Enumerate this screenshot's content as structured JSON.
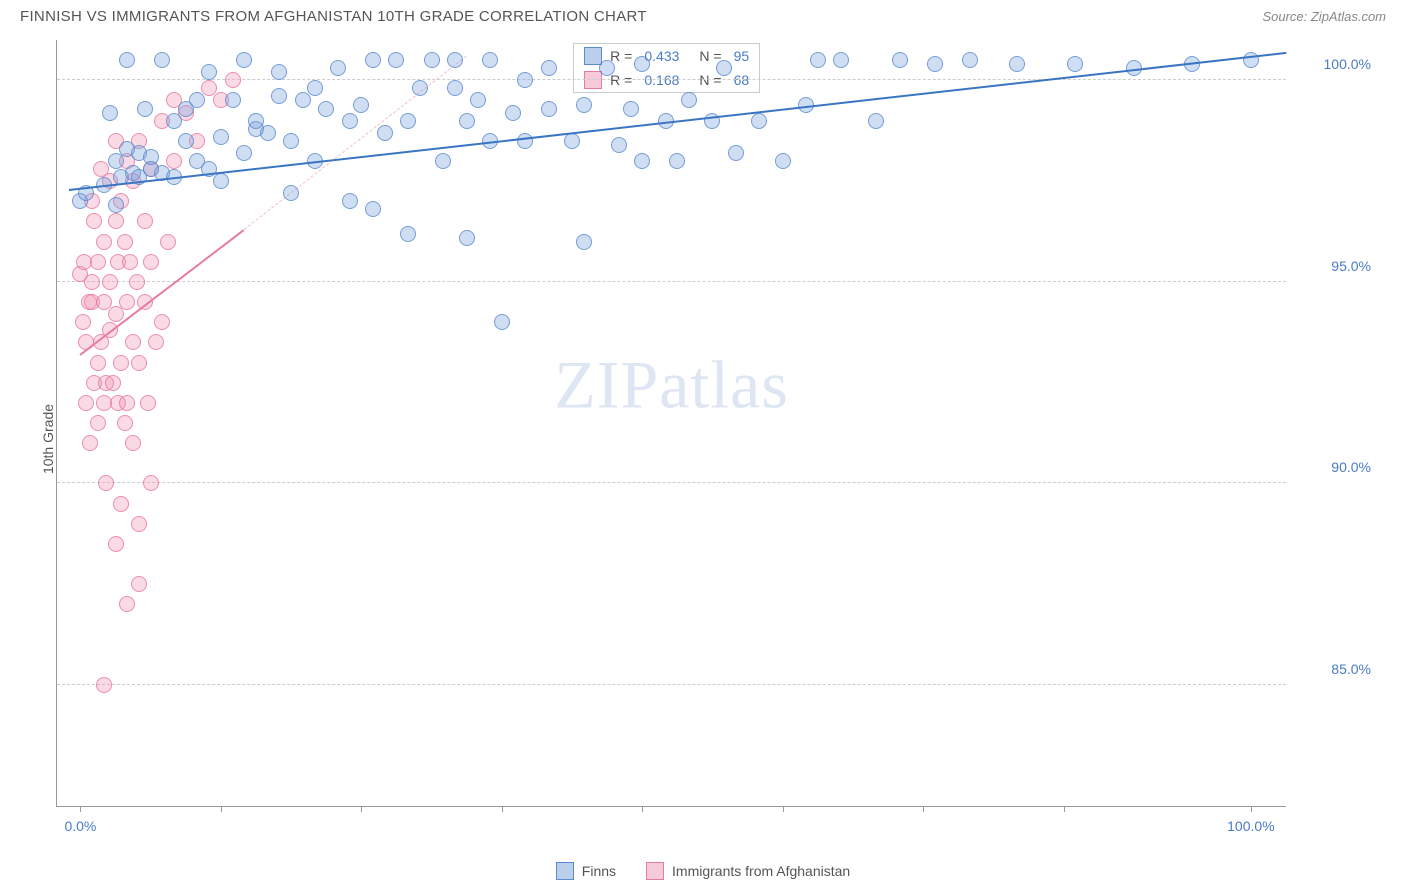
{
  "header": {
    "title": "FINNISH VS IMMIGRANTS FROM AFGHANISTAN 10TH GRADE CORRELATION CHART",
    "source": "Source: ZipAtlas.com"
  },
  "ylabel": "10th Grade",
  "watermark": {
    "part1": "ZIP",
    "part2": "atlas"
  },
  "axes": {
    "ymin": 82.0,
    "ymax": 101.0,
    "yticks": [
      85.0,
      90.0,
      95.0,
      100.0
    ],
    "ytick_labels": [
      "85.0%",
      "90.0%",
      "95.0%",
      "100.0%"
    ],
    "xmin": -2.0,
    "xmax": 103.0,
    "xticks": [
      0,
      12,
      24,
      36,
      48,
      60,
      72,
      84,
      100
    ],
    "xaxis_labels": [
      {
        "pos": 0,
        "text": "0.0%"
      },
      {
        "pos": 100,
        "text": "100.0%"
      }
    ]
  },
  "colors": {
    "blue_fill": "rgba(120,160,220,0.35)",
    "blue_stroke": "rgba(80,130,200,0.7)",
    "pink_fill": "rgba(240,150,180,0.35)",
    "pink_stroke": "rgba(230,110,150,0.7)",
    "grid": "#cccccc",
    "axis": "#999999",
    "tick_text": "#4a7bc8",
    "trend_blue": "#3a75c4",
    "trend_pink": "#e87ba3"
  },
  "legend_stats": {
    "rows": [
      {
        "swatch": "blue",
        "r": "0.433",
        "n": "95"
      },
      {
        "swatch": "pink",
        "r": "0.168",
        "n": "68"
      }
    ],
    "r_label": "R =",
    "n_label": "N ="
  },
  "bottom_legend": [
    {
      "swatch": "blue",
      "label": "Finns"
    },
    {
      "swatch": "pink",
      "label": "Immigrants from Afghanistan"
    }
  ],
  "trend_lines": {
    "blue": {
      "x1": -1,
      "y1": 97.3,
      "x2": 103,
      "y2": 100.7
    },
    "pink_solid": {
      "x1": 0,
      "y1": 93.2,
      "x2": 14,
      "y2": 96.3
    },
    "pink_dash": {
      "x1": 14,
      "y1": 96.3,
      "x2": 33,
      "y2": 100.6
    }
  },
  "series": {
    "blue": [
      [
        0,
        97.0
      ],
      [
        0.5,
        97.2
      ],
      [
        2,
        97.4
      ],
      [
        2.5,
        99.2
      ],
      [
        3,
        96.9
      ],
      [
        3,
        98.0
      ],
      [
        3.5,
        97.6
      ],
      [
        4,
        100.5
      ],
      [
        4,
        98.3
      ],
      [
        4.5,
        97.7
      ],
      [
        5,
        97.6
      ],
      [
        5,
        98.2
      ],
      [
        5.5,
        99.3
      ],
      [
        6,
        97.8
      ],
      [
        6,
        98.1
      ],
      [
        7,
        97.7
      ],
      [
        7,
        100.5
      ],
      [
        8,
        99.0
      ],
      [
        8,
        97.6
      ],
      [
        9,
        98.5
      ],
      [
        9,
        99.3
      ],
      [
        10,
        98.0
      ],
      [
        10,
        99.5
      ],
      [
        11,
        97.8
      ],
      [
        11,
        100.2
      ],
      [
        12,
        98.6
      ],
      [
        12,
        97.5
      ],
      [
        13,
        99.5
      ],
      [
        14,
        98.2
      ],
      [
        14,
        100.5
      ],
      [
        15,
        98.8
      ],
      [
        15,
        99.0
      ],
      [
        16,
        98.7
      ],
      [
        17,
        99.6
      ],
      [
        17,
        100.2
      ],
      [
        18,
        97.2
      ],
      [
        18,
        98.5
      ],
      [
        19,
        99.5
      ],
      [
        20,
        99.8
      ],
      [
        20,
        98.0
      ],
      [
        21,
        99.3
      ],
      [
        22,
        100.3
      ],
      [
        23,
        97.0
      ],
      [
        23,
        99.0
      ],
      [
        24,
        99.4
      ],
      [
        25,
        96.8
      ],
      [
        25,
        100.5
      ],
      [
        26,
        98.7
      ],
      [
        27,
        100.5
      ],
      [
        28,
        99.0
      ],
      [
        28,
        96.2
      ],
      [
        29,
        99.8
      ],
      [
        30,
        100.5
      ],
      [
        31,
        98.0
      ],
      [
        32,
        99.8
      ],
      [
        32,
        100.5
      ],
      [
        33,
        99.0
      ],
      [
        33,
        96.1
      ],
      [
        34,
        99.5
      ],
      [
        35,
        98.5
      ],
      [
        35,
        100.5
      ],
      [
        36,
        94.0
      ],
      [
        37,
        99.2
      ],
      [
        38,
        100.0
      ],
      [
        38,
        98.5
      ],
      [
        40,
        99.3
      ],
      [
        40,
        100.3
      ],
      [
        42,
        98.5
      ],
      [
        43,
        99.4
      ],
      [
        43,
        96.0
      ],
      [
        45,
        100.3
      ],
      [
        46,
        98.4
      ],
      [
        47,
        99.3
      ],
      [
        48,
        100.4
      ],
      [
        48,
        98.0
      ],
      [
        50,
        99.0
      ],
      [
        51,
        98.0
      ],
      [
        52,
        99.5
      ],
      [
        54,
        99.0
      ],
      [
        55,
        100.3
      ],
      [
        56,
        98.2
      ],
      [
        58,
        99.0
      ],
      [
        60,
        98.0
      ],
      [
        62,
        99.4
      ],
      [
        63,
        100.5
      ],
      [
        65,
        100.5
      ],
      [
        68,
        99.0
      ],
      [
        70,
        100.5
      ],
      [
        73,
        100.4
      ],
      [
        76,
        100.5
      ],
      [
        80,
        100.4
      ],
      [
        85,
        100.4
      ],
      [
        90,
        100.3
      ],
      [
        95,
        100.4
      ],
      [
        100,
        100.5
      ]
    ],
    "pink": [
      [
        0,
        95.2
      ],
      [
        0.2,
        94.0
      ],
      [
        0.3,
        95.5
      ],
      [
        0.5,
        92.0
      ],
      [
        0.5,
        93.5
      ],
      [
        0.7,
        94.5
      ],
      [
        0.8,
        91.0
      ],
      [
        1,
        94.5
      ],
      [
        1,
        95.0
      ],
      [
        1,
        97.0
      ],
      [
        1.2,
        92.5
      ],
      [
        1.2,
        96.5
      ],
      [
        1.5,
        93.0
      ],
      [
        1.5,
        95.5
      ],
      [
        1.5,
        91.5
      ],
      [
        1.8,
        97.8
      ],
      [
        1.8,
        93.5
      ],
      [
        2,
        92.0
      ],
      [
        2,
        96.0
      ],
      [
        2,
        94.5
      ],
      [
        2.2,
        90.0
      ],
      [
        2.2,
        92.5
      ],
      [
        2.5,
        95.0
      ],
      [
        2.5,
        97.5
      ],
      [
        2.5,
        93.8
      ],
      [
        2.8,
        92.5
      ],
      [
        3,
        96.5
      ],
      [
        3,
        94.2
      ],
      [
        3,
        98.5
      ],
      [
        3.2,
        92.0
      ],
      [
        3.2,
        95.5
      ],
      [
        3.5,
        93.0
      ],
      [
        3.5,
        97.0
      ],
      [
        3.5,
        89.5
      ],
      [
        3.8,
        91.5
      ],
      [
        3.8,
        96.0
      ],
      [
        4,
        94.5
      ],
      [
        4,
        98.0
      ],
      [
        4,
        92.0
      ],
      [
        4.2,
        95.5
      ],
      [
        4.5,
        93.5
      ],
      [
        4.5,
        97.5
      ],
      [
        4.5,
        91.0
      ],
      [
        4.8,
        95.0
      ],
      [
        5,
        93.0
      ],
      [
        5,
        98.5
      ],
      [
        5,
        89.0
      ],
      [
        5.5,
        94.5
      ],
      [
        5.5,
        96.5
      ],
      [
        5.8,
        92.0
      ],
      [
        6,
        95.5
      ],
      [
        6,
        97.8
      ],
      [
        6.5,
        93.5
      ],
      [
        7,
        99.0
      ],
      [
        7,
        94.0
      ],
      [
        7.5,
        96.0
      ],
      [
        8,
        98.0
      ],
      [
        8,
        99.5
      ],
      [
        9,
        99.2
      ],
      [
        10,
        98.5
      ],
      [
        11,
        99.8
      ],
      [
        12,
        99.5
      ],
      [
        13,
        100.0
      ],
      [
        2,
        85.0
      ],
      [
        4,
        87.0
      ],
      [
        3,
        88.5
      ],
      [
        5,
        87.5
      ],
      [
        6,
        90.0
      ]
    ]
  }
}
